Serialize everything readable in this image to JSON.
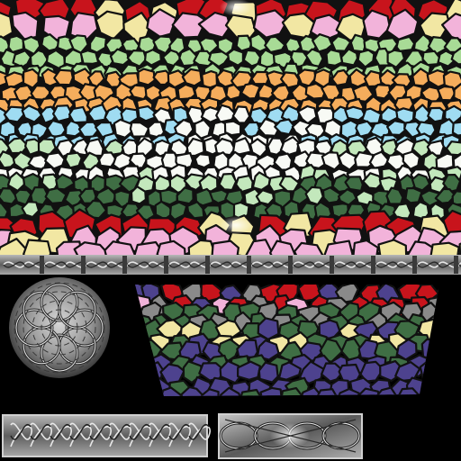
{
  "atlas": {
    "background": "#000000",
    "lead_color": "#111111"
  },
  "palette": {
    "red": "#c8141c",
    "pink": "#f2b3da",
    "cream": "#f2e7a3",
    "light_green": "#a8db96",
    "orange": "#f5ad5c",
    "cyan": "#9fdcf2",
    "white": "#f8faf5",
    "mint": "#c3e8bc",
    "dark_green": "#3f6e44",
    "violet": "#4d428e",
    "gray": "#8a8a8a",
    "silver": "#d8d8d8"
  },
  "tiles": [
    {
      "name": "top-rainbow-window",
      "motif": "stained-glass-bands"
    },
    {
      "name": "celtic-knot-strip-top",
      "motif": "celtic-knotwork"
    },
    {
      "name": "celtic-knot-medallion",
      "motif": "celtic-knotwork"
    },
    {
      "name": "jeweled-mosaic-panel",
      "motif": "stained-glass-bands"
    },
    {
      "name": "celtic-knot-bar-bottom-left",
      "motif": "celtic-knotwork"
    },
    {
      "name": "celtic-knot-panel-bottom-right",
      "motif": "celtic-knotwork"
    }
  ]
}
